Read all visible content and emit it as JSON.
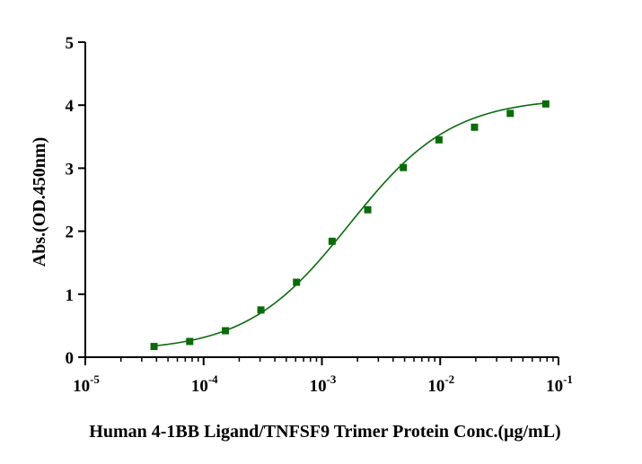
{
  "chart_data": {
    "type": "scatter",
    "title": "",
    "xlabel": "Human 4-1BB Ligand/TNFSF9 Trimer Protein  Conc.(μg/mL)",
    "ylabel": "Abs.(OD.450nm)",
    "xscale": "log",
    "xlim": [
      1e-05,
      0.1
    ],
    "ylim": [
      0,
      5
    ],
    "grid": false,
    "colors": {
      "series": "#0b6b0b",
      "axis": "#000000"
    },
    "x_ticks": [
      {
        "value": 1e-05,
        "base": "10",
        "exp": "-5"
      },
      {
        "value": 0.0001,
        "base": "10",
        "exp": "-4"
      },
      {
        "value": 0.001,
        "base": "10",
        "exp": "-3"
      },
      {
        "value": 0.01,
        "base": "10",
        "exp": "-2"
      },
      {
        "value": 0.1,
        "base": "10",
        "exp": "-1"
      }
    ],
    "y_ticks": [
      0,
      1,
      2,
      3,
      4,
      5
    ],
    "series": [
      {
        "marker": "square",
        "points": [
          {
            "x": 3.81e-05,
            "y": 0.17
          },
          {
            "x": 7.63e-05,
            "y": 0.25
          },
          {
            "x": 0.000153,
            "y": 0.42
          },
          {
            "x": 0.000305,
            "y": 0.75
          },
          {
            "x": 0.00061,
            "y": 1.19
          },
          {
            "x": 0.00122,
            "y": 1.84
          },
          {
            "x": 0.00244,
            "y": 2.34
          },
          {
            "x": 0.00488,
            "y": 3.01
          },
          {
            "x": 0.00977,
            "y": 3.45
          },
          {
            "x": 0.0195,
            "y": 3.65
          },
          {
            "x": 0.0391,
            "y": 3.87
          },
          {
            "x": 0.0781,
            "y": 4.02
          }
        ],
        "fit": {
          "model": "4PL",
          "bottom": 0.09,
          "top": 4.12,
          "ec50": 0.0017,
          "hill": 1.0
        }
      }
    ]
  }
}
